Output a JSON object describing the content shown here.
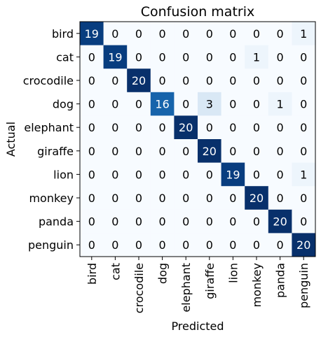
{
  "chart_data": {
    "type": "heatmap",
    "title": "Confusion matrix",
    "xlabel": "Predicted",
    "ylabel": "Actual",
    "labels": [
      "bird",
      "cat",
      "crocodile",
      "dog",
      "elephant",
      "giraffe",
      "lion",
      "monkey",
      "panda",
      "penguin"
    ],
    "values": [
      [
        19,
        0,
        0,
        0,
        0,
        0,
        0,
        0,
        0,
        1
      ],
      [
        0,
        19,
        0,
        0,
        0,
        0,
        0,
        1,
        0,
        0
      ],
      [
        0,
        0,
        20,
        0,
        0,
        0,
        0,
        0,
        0,
        0
      ],
      [
        0,
        0,
        0,
        16,
        0,
        3,
        0,
        0,
        1,
        0
      ],
      [
        0,
        0,
        0,
        0,
        20,
        0,
        0,
        0,
        0,
        0
      ],
      [
        0,
        0,
        0,
        0,
        0,
        20,
        0,
        0,
        0,
        0
      ],
      [
        0,
        0,
        0,
        0,
        0,
        0,
        19,
        0,
        0,
        1
      ],
      [
        0,
        0,
        0,
        0,
        0,
        0,
        0,
        20,
        0,
        0
      ],
      [
        0,
        0,
        0,
        0,
        0,
        0,
        0,
        0,
        20,
        0
      ],
      [
        0,
        0,
        0,
        0,
        0,
        0,
        0,
        0,
        0,
        20
      ]
    ],
    "vmin": 0,
    "vmax": 20,
    "colormap": "Blues",
    "grid": false
  }
}
